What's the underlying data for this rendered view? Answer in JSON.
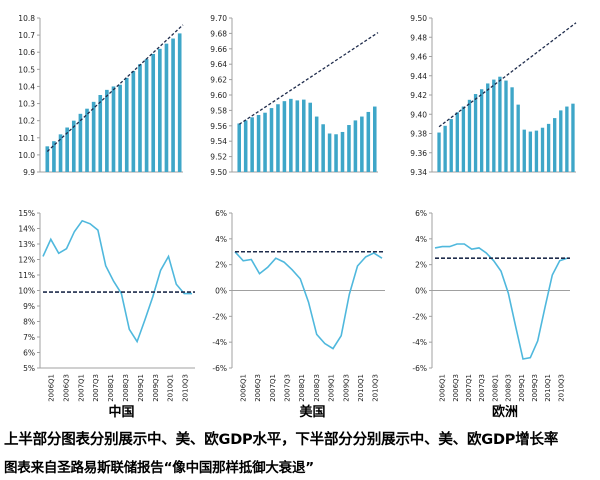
{
  "captions": {
    "line1": "上半部分图表分别展示中、美、欧GDP水平，下半部分分别展示中、美、欧GDP增长率",
    "line2": "图表来自圣路易斯联储报告“像中国那样抵御大衰退”"
  },
  "region_labels": [
    "中国",
    "美国",
    "欧洲"
  ],
  "colors": {
    "bar": "#3ea6c8",
    "line": "#4fb8dd",
    "dash": "#1f2c4c",
    "axis": "#a0a0a0"
  },
  "chart_data": [
    {
      "type": "bar",
      "region": "中国",
      "ylim": [
        9.9,
        10.8
      ],
      "yticks": [
        "9.9",
        "10.0",
        "10.1",
        "10.2",
        "10.3",
        "10.4",
        "10.5",
        "10.6",
        "10.7",
        "10.8"
      ],
      "values": [
        10.05,
        10.08,
        10.12,
        10.16,
        10.2,
        10.24,
        10.27,
        10.31,
        10.35,
        10.38,
        10.4,
        10.41,
        10.45,
        10.49,
        10.53,
        10.56,
        10.59,
        10.62,
        10.65,
        10.68,
        10.71
      ],
      "trend": [
        10.02,
        10.76
      ]
    },
    {
      "type": "bar",
      "region": "美国",
      "ylim": [
        9.5,
        9.7
      ],
      "yticks": [
        "9.50",
        "9.52",
        "9.54",
        "9.56",
        "9.58",
        "9.60",
        "9.62",
        "9.64",
        "9.66",
        "9.68",
        "9.70"
      ],
      "values": [
        9.563,
        9.567,
        9.571,
        9.574,
        9.577,
        9.583,
        9.588,
        9.592,
        9.595,
        9.593,
        9.594,
        9.59,
        9.572,
        9.562,
        9.55,
        9.549,
        9.552,
        9.561,
        9.567,
        9.572,
        9.578,
        9.585
      ],
      "trend": [
        9.562,
        9.681
      ]
    },
    {
      "type": "bar",
      "region": "欧洲",
      "ylim": [
        9.34,
        9.5
      ],
      "yticks": [
        "9.34",
        "9.36",
        "9.38",
        "9.40",
        "9.42",
        "9.44",
        "9.46",
        "9.48",
        "9.50"
      ],
      "values": [
        9.381,
        9.388,
        9.395,
        9.402,
        9.408,
        9.415,
        9.421,
        9.426,
        9.432,
        9.436,
        9.439,
        9.435,
        9.428,
        9.41,
        9.384,
        9.382,
        9.383,
        9.386,
        9.39,
        9.396,
        9.404,
        9.408,
        9.411
      ],
      "trend": [
        9.387,
        9.495
      ]
    },
    {
      "type": "line",
      "region": "中国",
      "ylim": [
        5,
        15
      ],
      "yticks": [
        "5%",
        "6%",
        "7%",
        "8%",
        "9%",
        "10%",
        "11%",
        "12%",
        "13%",
        "14%",
        "15%"
      ],
      "xticks": [
        "2006Q1",
        "2006Q3",
        "2007Q1",
        "2007Q3",
        "2008Q1",
        "2008Q3",
        "2009Q1",
        "2009Q3",
        "2010Q1",
        "2010Q3"
      ],
      "values": [
        12.2,
        13.3,
        12.4,
        12.7,
        13.8,
        14.5,
        14.3,
        13.9,
        11.6,
        10.6,
        9.8,
        7.5,
        6.7,
        8.1,
        9.6,
        11.3,
        12.2,
        10.4,
        9.8,
        9.8
      ],
      "dashed_level": 9.9
    },
    {
      "type": "line",
      "region": "美国",
      "ylim": [
        -6,
        6
      ],
      "yticks": [
        "-6%",
        "-4%",
        "-2%",
        "0%",
        "2%",
        "4%",
        "6%"
      ],
      "xticks": [
        "2006Q1",
        "2006Q3",
        "2007Q1",
        "2007Q3",
        "2008Q1",
        "2008Q3",
        "2009Q1",
        "2009Q3",
        "2010Q1",
        "2010Q3"
      ],
      "values": [
        3.0,
        2.3,
        2.4,
        1.3,
        1.8,
        2.5,
        2.2,
        1.6,
        0.9,
        -0.9,
        -3.4,
        -4.1,
        -4.5,
        -3.5,
        -0.3,
        1.9,
        2.6,
        2.9,
        2.5
      ],
      "dashed_level": 3.0
    },
    {
      "type": "line",
      "region": "欧洲",
      "ylim": [
        -6,
        6
      ],
      "yticks": [
        "-6%",
        "-4%",
        "-2%",
        "0%",
        "2%",
        "4%",
        "6%"
      ],
      "xticks": [
        "2006Q1",
        "2006Q3",
        "2007Q1",
        "2007Q3",
        "2008Q1",
        "2008Q3",
        "2009Q1",
        "2009Q3",
        "2010Q1",
        "2010Q3"
      ],
      "values": [
        3.3,
        3.4,
        3.4,
        3.6,
        3.6,
        3.2,
        3.3,
        2.9,
        2.3,
        1.5,
        -0.2,
        -2.8,
        -5.3,
        -5.2,
        -3.9,
        -1.3,
        1.2,
        2.3,
        2.5
      ],
      "dashed_level": 2.5
    }
  ]
}
